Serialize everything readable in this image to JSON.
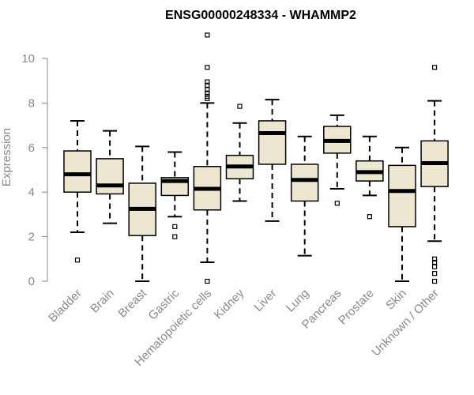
{
  "chart_data": {
    "type": "boxplot",
    "title": "ENSG00000248334 - WHAMMP2",
    "ylabel": "Expression",
    "ylim": [
      0,
      11.2
    ],
    "yticks": [
      "0",
      "2",
      "4",
      "6",
      "8",
      "10"
    ],
    "box_color": "#ede7d1",
    "categories": [
      "Bladder",
      "Brain",
      "Breast",
      "Gastric",
      "Hematopoietic cells",
      "Kidney",
      "Liver",
      "Lung",
      "Pancreas",
      "Prostate",
      "Skin",
      "Unknown / Other"
    ],
    "boxes": [
      {
        "min": 2.2,
        "q1": 4.0,
        "median": 4.8,
        "q3": 5.85,
        "max": 7.2,
        "outliers": [
          0.95
        ]
      },
      {
        "min": 2.6,
        "q1": 3.92,
        "median": 4.3,
        "q3": 5.5,
        "max": 6.75,
        "outliers": []
      },
      {
        "min": 0.0,
        "q1": 2.05,
        "median": 3.25,
        "q3": 4.4,
        "max": 6.05,
        "outliers": []
      },
      {
        "min": 2.9,
        "q1": 3.85,
        "median": 4.5,
        "q3": 4.65,
        "max": 5.8,
        "outliers": [
          2.45,
          2.0
        ]
      },
      {
        "min": 0.85,
        "q1": 3.2,
        "median": 4.15,
        "q3": 5.15,
        "max": 8.0,
        "outliers": [
          11.05,
          9.6,
          8.95,
          8.8,
          8.6,
          8.45,
          8.3,
          8.2,
          0.0
        ]
      },
      {
        "min": 3.6,
        "q1": 4.6,
        "median": 5.15,
        "q3": 5.65,
        "max": 7.1,
        "outliers": [
          7.85
        ]
      },
      {
        "min": 2.7,
        "q1": 5.25,
        "median": 6.65,
        "q3": 7.2,
        "max": 8.15,
        "outliers": []
      },
      {
        "min": 1.15,
        "q1": 3.6,
        "median": 4.55,
        "q3": 5.25,
        "max": 6.5,
        "outliers": []
      },
      {
        "min": 4.15,
        "q1": 5.75,
        "median": 6.3,
        "q3": 6.95,
        "max": 7.45,
        "outliers": [
          3.5
        ]
      },
      {
        "min": 3.85,
        "q1": 4.5,
        "median": 4.9,
        "q3": 5.4,
        "max": 6.5,
        "outliers": [
          2.9
        ]
      },
      {
        "min": 0.0,
        "q1": 2.45,
        "median": 4.05,
        "q3": 5.2,
        "max": 6.0,
        "outliers": []
      },
      {
        "min": 1.8,
        "q1": 4.25,
        "median": 5.3,
        "q3": 6.3,
        "max": 8.1,
        "outliers": [
          9.6,
          1.0,
          0.85,
          0.65,
          0.35,
          0.0
        ]
      }
    ]
  }
}
